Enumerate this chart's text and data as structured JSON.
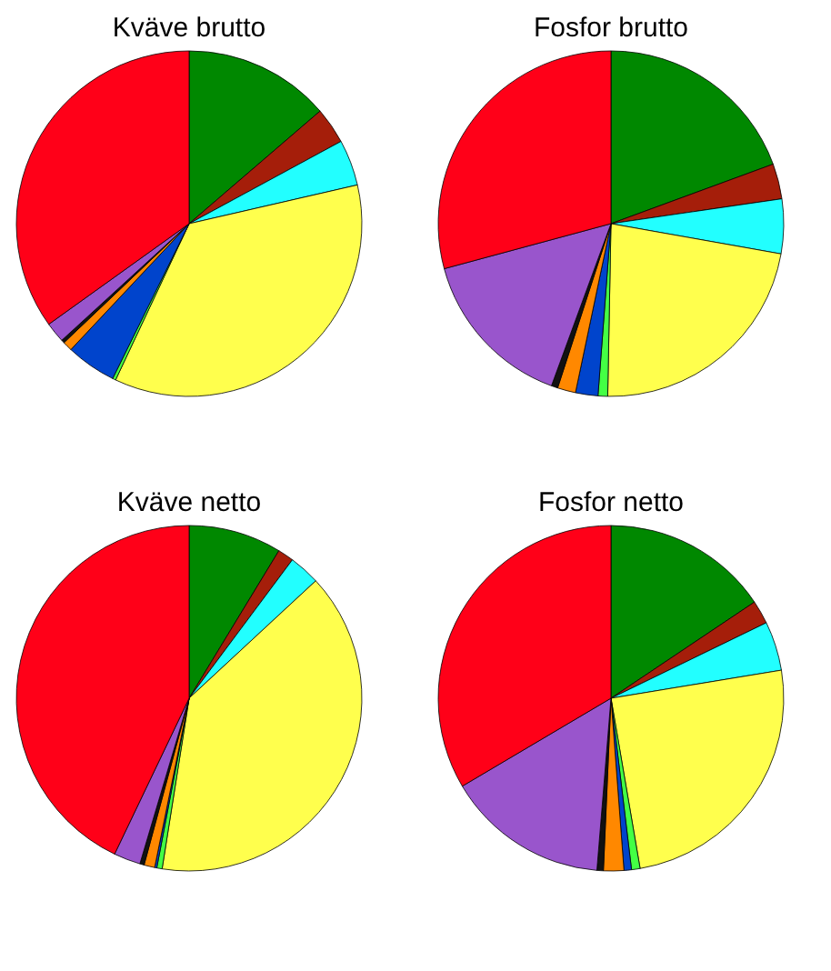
{
  "chart_data": [
    {
      "type": "pie",
      "title": "Kväve brutto",
      "categories": [
        null,
        null,
        null,
        null,
        null,
        null,
        null,
        null,
        null,
        null
      ],
      "values": [
        13.7,
        3.4,
        4.3,
        35.6,
        0.3,
        4.7,
        0.9,
        0.3,
        1.9,
        34.9
      ],
      "colors": [
        "#008800",
        "#a51e0a",
        "#22ffff",
        "#ffff4d",
        "#44ff44",
        "#0044cc",
        "#ff8800",
        "#111111",
        "#9955cc",
        "#ff0018"
      ]
    },
    {
      "type": "pie",
      "title": "Fosfor brutto",
      "categories": [
        null,
        null,
        null,
        null,
        null,
        null,
        null,
        null,
        null,
        null
      ],
      "values": [
        19.4,
        3.3,
        5.1,
        22.5,
        0.9,
        2.1,
        1.7,
        0.6,
        15.2,
        29.2
      ],
      "colors": [
        "#008800",
        "#a51e0a",
        "#22ffff",
        "#ffff4d",
        "#44ff44",
        "#0044cc",
        "#ff8800",
        "#111111",
        "#9955cc",
        "#ff0018"
      ]
    },
    {
      "type": "pie",
      "title": "Kväve netto",
      "categories": [
        null,
        null,
        null,
        null,
        null,
        null,
        null,
        null,
        null,
        null
      ],
      "values": [
        8.7,
        1.5,
        2.9,
        39.4,
        0.5,
        0.2,
        1.0,
        0.4,
        2.5,
        42.9
      ],
      "colors": [
        "#008800",
        "#a51e0a",
        "#22ffff",
        "#ffff4d",
        "#44ff44",
        "#0044cc",
        "#ff8800",
        "#111111",
        "#9955cc",
        "#ff0018"
      ]
    },
    {
      "type": "pie",
      "title": "Fosfor netto",
      "categories": [
        null,
        null,
        null,
        null,
        null,
        null,
        null,
        null,
        null,
        null
      ],
      "values": [
        15.6,
        2.2,
        4.6,
        24.9,
        0.8,
        0.7,
        1.9,
        0.6,
        15.2,
        33.5
      ],
      "colors": [
        "#008800",
        "#a51e0a",
        "#22ffff",
        "#ffff4d",
        "#44ff44",
        "#0044cc",
        "#ff8800",
        "#111111",
        "#9955cc",
        "#ff0018"
      ]
    }
  ]
}
